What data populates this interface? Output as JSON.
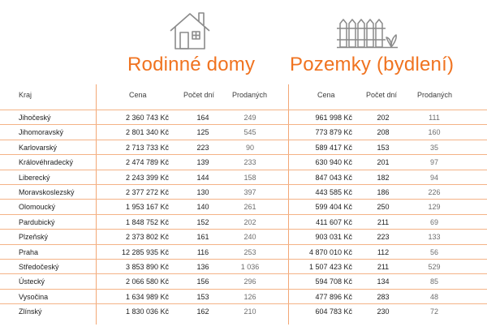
{
  "icons": {
    "house": "house-icon",
    "fence": "fence-icon",
    "accent_color": "#f07320",
    "icon_color": "#8a8a8a"
  },
  "sections": {
    "left_title": "Rodinné domy",
    "right_title": "Pozemky (bydlení)"
  },
  "headers": {
    "kraj": "Kraj",
    "domy_cena": "Cena",
    "domy_dni": "Počet dní",
    "domy_prodanych": "Prodaných",
    "pozemky_cena": "Cena",
    "pozemky_dni": "Počet dní",
    "pozemky_prodanych": "Prodaných"
  },
  "rows": [
    {
      "kraj": "Jihočeský",
      "domy_cena": "2 360 743 Kč",
      "domy_dni": "164",
      "domy_prodanych": "249",
      "pozemky_cena": "961 998 Kč",
      "pozemky_dni": "202",
      "pozemky_prodanych": "111"
    },
    {
      "kraj": "Jihomoravský",
      "domy_cena": "2 801 340 Kč",
      "domy_dni": "125",
      "domy_prodanych": "545",
      "pozemky_cena": "773 879 Kč",
      "pozemky_dni": "208",
      "pozemky_prodanych": "160"
    },
    {
      "kraj": "Karlovarský",
      "domy_cena": "2 713 733 Kč",
      "domy_dni": "223",
      "domy_prodanych": "90",
      "pozemky_cena": "589 417 Kč",
      "pozemky_dni": "153",
      "pozemky_prodanych": "35"
    },
    {
      "kraj": "Královéhradecký",
      "domy_cena": "2 474 789 Kč",
      "domy_dni": "139",
      "domy_prodanych": "233",
      "pozemky_cena": "630 940 Kč",
      "pozemky_dni": "201",
      "pozemky_prodanych": "97"
    },
    {
      "kraj": "Liberecký",
      "domy_cena": "2 243 399 Kč",
      "domy_dni": "144",
      "domy_prodanych": "158",
      "pozemky_cena": "847 043 Kč",
      "pozemky_dni": "182",
      "pozemky_prodanych": "94"
    },
    {
      "kraj": "Moravskoslezský",
      "domy_cena": "2 377 272 Kč",
      "domy_dni": "130",
      "domy_prodanych": "397",
      "pozemky_cena": "443 585 Kč",
      "pozemky_dni": "186",
      "pozemky_prodanych": "226"
    },
    {
      "kraj": "Olomoucký",
      "domy_cena": "1 953 167 Kč",
      "domy_dni": "140",
      "domy_prodanych": "261",
      "pozemky_cena": "599 404 Kč",
      "pozemky_dni": "250",
      "pozemky_prodanych": "129"
    },
    {
      "kraj": "Pardubický",
      "domy_cena": "1 848 752 Kč",
      "domy_dni": "152",
      "domy_prodanych": "202",
      "pozemky_cena": "411 607 Kč",
      "pozemky_dni": "211",
      "pozemky_prodanych": "69"
    },
    {
      "kraj": "Plzeňský",
      "domy_cena": "2 373 802 Kč",
      "domy_dni": "161",
      "domy_prodanych": "240",
      "pozemky_cena": "903 031 Kč",
      "pozemky_dni": "223",
      "pozemky_prodanych": "133"
    },
    {
      "kraj": "Praha",
      "domy_cena": "12 285 935 Kč",
      "domy_dni": "116",
      "domy_prodanych": "253",
      "pozemky_cena": "4 870 010 Kč",
      "pozemky_dni": "112",
      "pozemky_prodanych": "56"
    },
    {
      "kraj": "Středočeský",
      "domy_cena": "3 853 890 Kč",
      "domy_dni": "136",
      "domy_prodanych": "1 036",
      "pozemky_cena": "1 507 423 Kč",
      "pozemky_dni": "211",
      "pozemky_prodanych": "529"
    },
    {
      "kraj": "Ústecký",
      "domy_cena": "2 066 580 Kč",
      "domy_dni": "156",
      "domy_prodanych": "296",
      "pozemky_cena": "594 708 Kč",
      "pozemky_dni": "134",
      "pozemky_prodanych": "85"
    },
    {
      "kraj": "Vysočina",
      "domy_cena": "1 634 989 Kč",
      "domy_dni": "153",
      "domy_prodanych": "126",
      "pozemky_cena": "477 896 Kč",
      "pozemky_dni": "283",
      "pozemky_prodanych": "48"
    },
    {
      "kraj": "Zlínský",
      "domy_cena": "1 830 036 Kč",
      "domy_dni": "162",
      "domy_prodanych": "210",
      "pozemky_cena": "604 783 Kč",
      "pozemky_dni": "230",
      "pozemky_prodanych": "72"
    }
  ]
}
